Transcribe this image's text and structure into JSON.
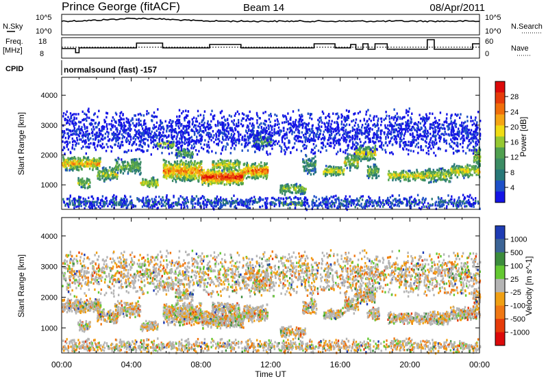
{
  "header": {
    "station": "Prince George (fitACF)",
    "beam": "Beam 14",
    "date": "08/Apr/2011"
  },
  "noise_panel": {
    "left_label": "N.Sky",
    "right_label": "N.Search",
    "ticks_left": [
      "10^5",
      "10^0"
    ],
    "ticks_right": [
      "10^5",
      "10^0"
    ]
  },
  "freq_panel": {
    "label_line1": "Freq.",
    "label_line2": "[MHz]",
    "ticks_left": [
      "18",
      "8"
    ],
    "ticks_right": [
      "60",
      "0"
    ],
    "right_label": "Nave"
  },
  "cpid": {
    "label": "CPID",
    "value": "normalsound (fast) -157"
  },
  "chart_data": [
    {
      "type": "heatmap",
      "name_on_chart": "",
      "ylabel": "Slant Range [km]",
      "ylim": [
        180,
        4600
      ],
      "yticks": [
        "1000",
        "2000",
        "3000",
        "4000"
      ],
      "xlim": [
        "00:00",
        "24:00"
      ],
      "xticks": [
        "00:00",
        "04:00",
        "08:00",
        "12:00",
        "16:00",
        "20:00",
        "00:00"
      ],
      "colorbar_label": "Power [dB]",
      "colorbar_ticks": [
        "4",
        "8",
        "12",
        "16",
        "20",
        "24",
        "28"
      ],
      "colorbar_colors": [
        "#1414e6",
        "#1e50c8",
        "#287878",
        "#3c8c64",
        "#50a050",
        "#96c832",
        "#f0dc14",
        "#f5a514",
        "#f06e0a",
        "#e63c0a",
        "#dc0a0a"
      ]
    },
    {
      "type": "heatmap",
      "name_on_chart": "",
      "ylabel": "Slant Range [km]",
      "ylim": [
        180,
        4600
      ],
      "yticks": [
        "1000",
        "2000",
        "3000",
        "4000"
      ],
      "xlim": [
        "00:00",
        "24:00"
      ],
      "xticks": [
        "00:00",
        "04:00",
        "08:00",
        "12:00",
        "16:00",
        "20:00",
        "00:00"
      ],
      "xlabel": "Time UT",
      "colorbar_label": "Velocity [m s^-1]",
      "colorbar_ticks": [
        "1000",
        "500",
        "100",
        "25",
        "-25",
        "-100",
        "-500",
        "-1000"
      ],
      "colorbar_colors": [
        "#1e3cb4",
        "#3c6496",
        "#3c8c3c",
        "#64c832",
        "#b4b4b4",
        "#f0a014",
        "#f07814",
        "#e63c0a",
        "#dc0a0a"
      ]
    }
  ]
}
